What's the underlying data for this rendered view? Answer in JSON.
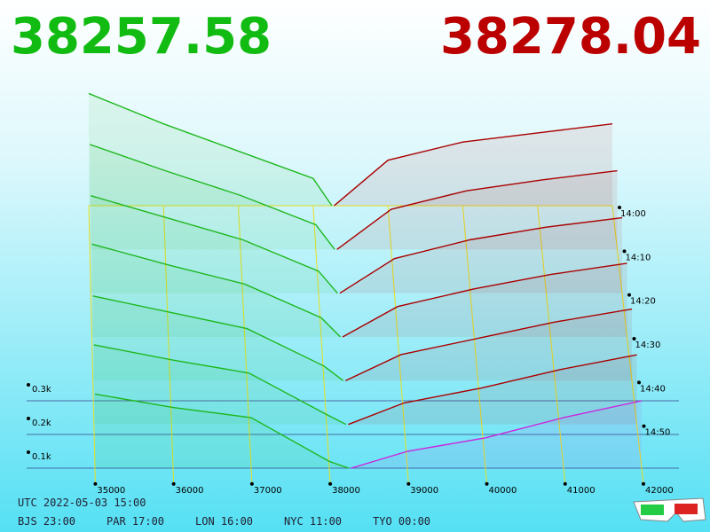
{
  "header": {
    "bid_price": 38257.58,
    "ask_price": 38278.04
  },
  "chart_data": {
    "type": "depth3d",
    "xticks": [
      35000,
      36000,
      37000,
      38000,
      39000,
      40000,
      41000,
      42000
    ],
    "yticks": [
      {
        "value": 100,
        "label": "0.1k"
      },
      {
        "value": 200,
        "label": "0.2k"
      },
      {
        "value": 300,
        "label": "0.3k"
      }
    ],
    "colors": {
      "bid": "#1fb81f",
      "ask": "#aa0000",
      "latest_ask": "#cc22dd",
      "grid": "#e8e020"
    },
    "snapshots": [
      {
        "time": "14:00",
        "bids": {
          "x": [
            38250,
            38000,
            37000,
            36000,
            35000
          ],
          "values": [
            0,
            90,
            180,
            270,
            370
          ]
        },
        "asks": {
          "x": [
            38280,
            39000,
            40000,
            41000,
            42000
          ],
          "values": [
            0,
            150,
            210,
            240,
            270
          ]
        }
      },
      {
        "time": "14:10",
        "bids": {
          "x": [
            38250,
            38000,
            37000,
            36000,
            35000
          ],
          "values": [
            0,
            80,
            175,
            255,
            340
          ]
        },
        "asks": {
          "x": [
            38280,
            39000,
            40000,
            41000,
            42000
          ],
          "values": [
            0,
            130,
            190,
            225,
            255
          ]
        }
      },
      {
        "time": "14:20",
        "bids": {
          "x": [
            38250,
            38000,
            37000,
            36000,
            35000
          ],
          "values": [
            0,
            70,
            170,
            240,
            310
          ]
        },
        "asks": {
          "x": [
            38280,
            39000,
            40000,
            41000,
            42000
          ],
          "values": [
            0,
            110,
            170,
            210,
            240
          ]
        }
      },
      {
        "time": "14:30",
        "bids": {
          "x": [
            38250,
            38000,
            37000,
            36000,
            35000
          ],
          "values": [
            0,
            60,
            165,
            225,
            290
          ]
        },
        "asks": {
          "x": [
            38280,
            39000,
            40000,
            41000,
            42000
          ],
          "values": [
            0,
            95,
            150,
            195,
            230
          ]
        }
      },
      {
        "time": "14:40",
        "bids": {
          "x": [
            38250,
            38000,
            37000,
            36000,
            35000
          ],
          "values": [
            0,
            45,
            160,
            210,
            260
          ]
        },
        "asks": {
          "x": [
            38280,
            39000,
            40000,
            41000,
            42000
          ],
          "values": [
            0,
            80,
            130,
            180,
            220
          ]
        }
      },
      {
        "time": "14:50",
        "bids": {
          "x": [
            38250,
            38000,
            37000,
            36000,
            35000
          ],
          "values": [
            0,
            30,
            155,
            195,
            240
          ]
        },
        "asks": {
          "x": [
            38280,
            39000,
            40000,
            41000,
            42000
          ],
          "values": [
            0,
            65,
            110,
            165,
            210
          ]
        }
      },
      {
        "time": null,
        "bids": {
          "x": [
            38250,
            38000,
            37000,
            36000,
            35000
          ],
          "values": [
            0,
            20,
            150,
            180,
            220
          ]
        },
        "asks": {
          "x": [
            38280,
            39000,
            40000,
            41000,
            42000
          ],
          "values": [
            0,
            50,
            90,
            150,
            200
          ]
        }
      }
    ]
  },
  "footer": {
    "utc": "UTC 2022-05-03 15:00",
    "zones": [
      "BJS 23:00",
      "PAR 17:00",
      "LON 16:00",
      "NYC 11:00",
      "TYO 00:00"
    ]
  }
}
